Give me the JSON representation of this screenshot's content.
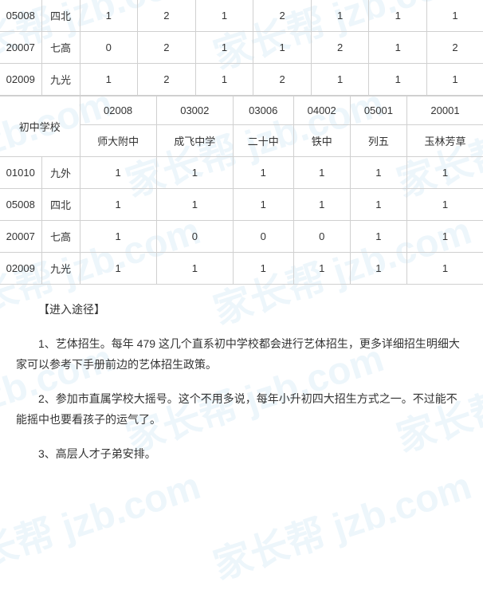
{
  "watermark_text": "家长帮 jzb.com",
  "watermark_color": "#1e88cc",
  "table1": {
    "rows": [
      {
        "code": "05008",
        "name": "四北",
        "v": [
          "1",
          "2",
          "1",
          "2",
          "1",
          "1",
          "1"
        ]
      },
      {
        "code": "20007",
        "name": "七高",
        "v": [
          "0",
          "2",
          "1",
          "1",
          "2",
          "1",
          "2"
        ]
      },
      {
        "code": "02009",
        "name": "九光",
        "v": [
          "1",
          "2",
          "1",
          "2",
          "1",
          "1",
          "1"
        ]
      }
    ]
  },
  "table2": {
    "header_label": "初中学校",
    "col_codes": [
      "02008",
      "03002",
      "03006",
      "04002",
      "05001",
      "20001"
    ],
    "col_names": [
      "师大附中",
      "成飞中学",
      "二十中",
      "铁中",
      "列五",
      "玉林芳草"
    ],
    "rows": [
      {
        "code": "01010",
        "name": "九外",
        "v": [
          "1",
          "1",
          "1",
          "1",
          "1",
          "1"
        ]
      },
      {
        "code": "05008",
        "name": "四北",
        "v": [
          "1",
          "1",
          "1",
          "1",
          "1",
          "1"
        ]
      },
      {
        "code": "20007",
        "name": "七高",
        "v": [
          "1",
          "0",
          "0",
          "0",
          "1",
          "1"
        ]
      },
      {
        "code": "02009",
        "name": "九光",
        "v": [
          "1",
          "1",
          "1",
          "1",
          "1",
          "1"
        ]
      }
    ]
  },
  "text": {
    "heading": "【进入途径】",
    "p1": "1、艺体招生。每年 479 这几个直系初中学校都会进行艺体招生，更多详细招生明细大家可以参考下手册前边的艺体招生政策。",
    "p2": "2、参加市直属学校大摇号。这个不用多说，每年小升初四大招生方式之一。不过能不能摇中也要看孩子的运气了。",
    "p3": "3、高层人才子弟安排。"
  },
  "colors": {
    "border": "#d0d0d0",
    "text": "#333333",
    "background": "#ffffff"
  },
  "fontsize": {
    "table": 13,
    "body": 14
  }
}
